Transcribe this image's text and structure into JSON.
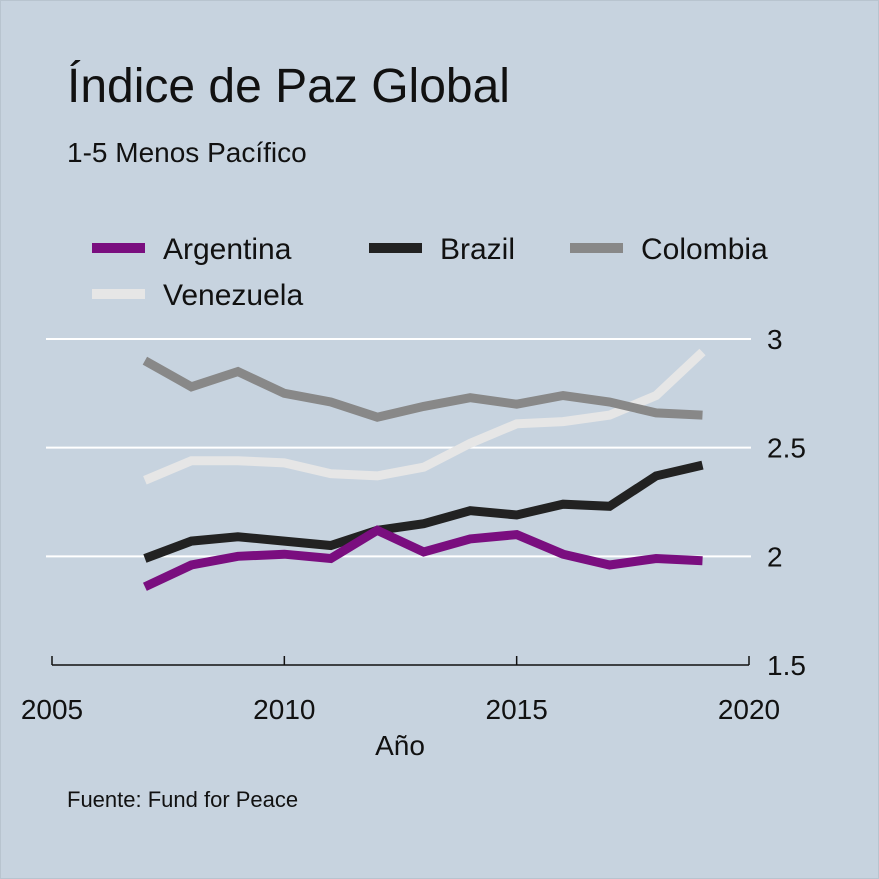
{
  "chart_data": {
    "type": "line",
    "title": "Índice de Paz Global",
    "subtitle": "1-5 Menos Pacífico",
    "xlabel": "Año",
    "ylabel": "",
    "xlim": [
      2005,
      2020
    ],
    "ylim": [
      1.5,
      3
    ],
    "x_ticks": [
      "2005",
      "2010",
      "2015",
      "2020"
    ],
    "y_ticks": [
      "3",
      "2.5",
      "2",
      "1.5"
    ],
    "x": [
      2007,
      2008,
      2009,
      2010,
      2011,
      2012,
      2013,
      2014,
      2015,
      2016,
      2017,
      2018,
      2019
    ],
    "series": [
      {
        "name": "Argentina",
        "color": "#7a0e7f",
        "values": [
          1.86,
          1.96,
          2.0,
          2.01,
          1.99,
          2.12,
          2.02,
          2.08,
          2.1,
          2.01,
          1.96,
          1.99,
          1.98
        ]
      },
      {
        "name": "Brazil",
        "color": "#222222",
        "values": [
          1.99,
          2.07,
          2.09,
          2.07,
          2.05,
          2.12,
          2.15,
          2.21,
          2.19,
          2.24,
          2.23,
          2.37,
          2.42
        ]
      },
      {
        "name": "Colombia",
        "color": "#888888",
        "values": [
          2.9,
          2.78,
          2.85,
          2.75,
          2.71,
          2.64,
          2.69,
          2.73,
          2.7,
          2.74,
          2.71,
          2.66,
          2.65
        ]
      },
      {
        "name": "Venezuela",
        "color": "#e6e6e6",
        "values": [
          2.35,
          2.44,
          2.44,
          2.43,
          2.38,
          2.37,
          2.41,
          2.52,
          2.61,
          2.62,
          2.65,
          2.74,
          2.94
        ]
      }
    ],
    "grid": true,
    "legend_position": "top"
  },
  "source": "Fuente: Fund for Peace",
  "colors": {
    "background": "#c7d3df",
    "gridline": "#ffffff",
    "axis": "#111111"
  }
}
